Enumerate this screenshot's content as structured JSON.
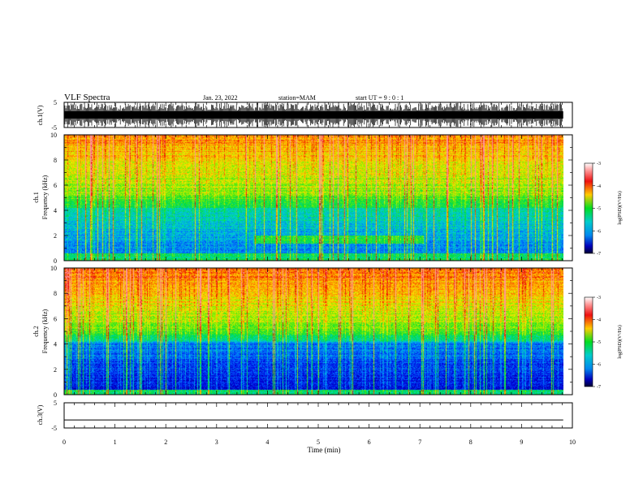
{
  "header": {
    "title": "VLF Spectra",
    "date": "Jan. 23, 2022",
    "station": "station=MAM",
    "start": "start UT =  9 : 0 : 1"
  },
  "chart_data": [
    {
      "type": "line",
      "name": "ch1-waveform",
      "ylabel": "ch.1(V)",
      "ylim": [
        -5,
        5
      ],
      "yticks": [
        5,
        -5
      ],
      "xlim": [
        0,
        10
      ],
      "data_end_min": 9.82,
      "description": "dense impulsive waveform spanning full range"
    },
    {
      "type": "heatmap",
      "name": "ch1-spectrogram",
      "ylabel_line1": "ch.1",
      "ylabel_line2": "Frequency (kHz)",
      "ylim": [
        0,
        10
      ],
      "yticks": [
        0,
        2,
        4,
        6,
        8,
        10
      ],
      "xlim": [
        0,
        10
      ],
      "data_end_min": 9.82,
      "colorbar": {
        "label": "log(PSD)(V²/Hz)",
        "range": [
          -7,
          -3
        ],
        "ticks": [
          -3,
          -4,
          -5,
          -6,
          -7
        ]
      }
    },
    {
      "type": "heatmap",
      "name": "ch2-spectrogram",
      "ylabel_line1": "ch.2",
      "ylabel_line2": "Frequency (kHz)",
      "ylim": [
        0,
        10
      ],
      "yticks": [
        0,
        2,
        4,
        6,
        8,
        10
      ],
      "xlim": [
        0,
        10
      ],
      "data_end_min": 9.82,
      "colorbar": {
        "label": "log(PSD)(V²/Hz)",
        "range": [
          -7,
          -3
        ],
        "ticks": [
          -3,
          -4,
          -5,
          -6,
          -7
        ]
      }
    },
    {
      "type": "line",
      "name": "ch3-waveform",
      "ylabel": "ch.3(V)",
      "ylim": [
        -5,
        5
      ],
      "yticks": [
        5,
        -5
      ],
      "xlim": [
        0,
        10
      ],
      "values": {
        "constant_level": -1.8
      }
    }
  ],
  "xaxis": {
    "label": "Time (min)",
    "ticks": [
      "0",
      "1",
      "2",
      "3",
      "4",
      "5",
      "6",
      "7",
      "8",
      "9",
      "10"
    ]
  },
  "colorbar_label": "log(PSD)(V²/Hz)",
  "colorbar_ticks": [
    "-3",
    "-4",
    "-5",
    "-6",
    "-7"
  ],
  "freq_ticks": [
    "0",
    "2",
    "4",
    "6",
    "8",
    "10"
  ],
  "volt_ticks": [
    "5",
    "-5"
  ]
}
